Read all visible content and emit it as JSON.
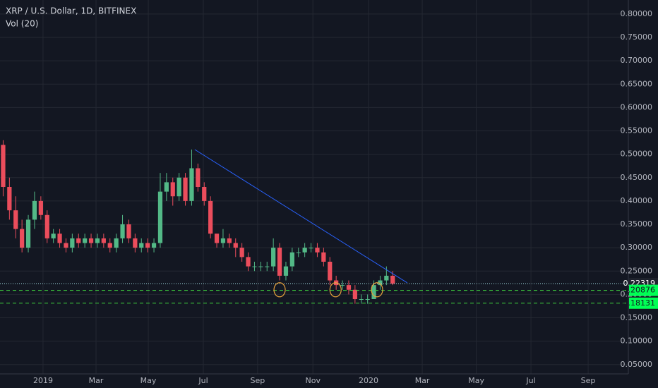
{
  "chart_data": {
    "type": "candlestick",
    "title": "XRP / U.S. Dollar, 1D, BITFINEX",
    "subtitle": "Vol (20)",
    "up_color": "#53b987",
    "down_color": "#eb4d5c",
    "grid": true,
    "open": [
      0.52,
      0.43,
      0.38,
      0.34,
      0.3,
      0.36,
      0.4,
      0.37,
      0.32,
      0.33,
      0.31,
      0.3,
      0.32,
      0.31,
      0.32,
      0.31,
      0.32,
      0.31,
      0.3,
      0.32,
      0.35,
      0.32,
      0.3,
      0.31,
      0.3,
      0.31,
      0.42,
      0.44,
      0.41,
      0.45,
      0.4,
      0.47,
      0.43,
      0.4,
      0.33,
      0.31,
      0.32,
      0.31,
      0.3,
      0.28,
      0.26,
      0.26,
      0.26,
      0.26,
      0.3,
      0.24,
      0.26,
      0.29,
      0.29,
      0.3,
      0.3,
      0.29,
      0.27,
      0.23,
      0.22,
      0.22,
      0.21,
      0.19,
      0.19,
      0.19,
      0.22,
      0.23,
      0.24
    ],
    "high": [
      0.53,
      0.45,
      0.41,
      0.36,
      0.37,
      0.42,
      0.41,
      0.38,
      0.34,
      0.34,
      0.32,
      0.33,
      0.33,
      0.33,
      0.33,
      0.33,
      0.33,
      0.32,
      0.33,
      0.37,
      0.36,
      0.33,
      0.32,
      0.32,
      0.32,
      0.46,
      0.46,
      0.45,
      0.46,
      0.46,
      0.51,
      0.48,
      0.44,
      0.41,
      0.33,
      0.34,
      0.33,
      0.32,
      0.31,
      0.29,
      0.27,
      0.27,
      0.27,
      0.32,
      0.31,
      0.27,
      0.3,
      0.3,
      0.31,
      0.31,
      0.31,
      0.3,
      0.28,
      0.24,
      0.23,
      0.23,
      0.22,
      0.2,
      0.2,
      0.23,
      0.24,
      0.26,
      0.25
    ],
    "low": [
      0.41,
      0.36,
      0.32,
      0.29,
      0.29,
      0.34,
      0.36,
      0.31,
      0.31,
      0.3,
      0.29,
      0.29,
      0.3,
      0.3,
      0.3,
      0.3,
      0.3,
      0.29,
      0.29,
      0.31,
      0.31,
      0.29,
      0.29,
      0.29,
      0.29,
      0.3,
      0.4,
      0.39,
      0.4,
      0.39,
      0.39,
      0.42,
      0.39,
      0.32,
      0.3,
      0.3,
      0.3,
      0.28,
      0.27,
      0.25,
      0.25,
      0.25,
      0.25,
      0.25,
      0.23,
      0.23,
      0.25,
      0.28,
      0.28,
      0.29,
      0.28,
      0.26,
      0.22,
      0.21,
      0.21,
      0.2,
      0.18,
      0.18,
      0.18,
      0.19,
      0.21,
      0.22,
      0.22
    ],
    "close": [
      0.43,
      0.38,
      0.34,
      0.3,
      0.36,
      0.4,
      0.37,
      0.32,
      0.33,
      0.31,
      0.3,
      0.32,
      0.31,
      0.32,
      0.31,
      0.32,
      0.31,
      0.3,
      0.32,
      0.35,
      0.32,
      0.3,
      0.31,
      0.3,
      0.31,
      0.42,
      0.44,
      0.41,
      0.45,
      0.4,
      0.47,
      0.43,
      0.4,
      0.33,
      0.31,
      0.32,
      0.31,
      0.3,
      0.28,
      0.26,
      0.26,
      0.26,
      0.26,
      0.3,
      0.24,
      0.26,
      0.29,
      0.29,
      0.3,
      0.3,
      0.29,
      0.27,
      0.23,
      0.22,
      0.22,
      0.21,
      0.19,
      0.19,
      0.19,
      0.22,
      0.23,
      0.24,
      0.22319
    ],
    "xlim": [
      -0.5,
      99.5
    ],
    "xticks": [
      {
        "value": 6.35,
        "label": "2019"
      },
      {
        "value": 14.78,
        "label": "Mar"
      },
      {
        "value": 23.1,
        "label": "May"
      },
      {
        "value": 31.86,
        "label": "Jul"
      },
      {
        "value": 40.5,
        "label": "Sep"
      },
      {
        "value": 49.3,
        "label": "Nov"
      },
      {
        "value": 58.15,
        "label": "2020"
      },
      {
        "value": 66.7,
        "label": "Mar"
      },
      {
        "value": 75.3,
        "label": "May"
      },
      {
        "value": 84,
        "label": "Jul"
      },
      {
        "value": 93.1,
        "label": "Sep"
      }
    ],
    "ylim": [
      0.03,
      0.83
    ],
    "yticks": [
      {
        "value": 0.05,
        "label": "0.05000"
      },
      {
        "value": 0.1,
        "label": "0.10000"
      },
      {
        "value": 0.15,
        "label": "0.15000"
      },
      {
        "value": 0.2,
        "label": "0.20000"
      },
      {
        "value": 0.25,
        "label": "0.25000"
      },
      {
        "value": 0.3,
        "label": "0.30000"
      },
      {
        "value": 0.35,
        "label": "0.35000"
      },
      {
        "value": 0.4,
        "label": "0.40000"
      },
      {
        "value": 0.45,
        "label": "0.45000"
      },
      {
        "value": 0.5,
        "label": "0.50000"
      },
      {
        "value": 0.55,
        "label": "0.55000"
      },
      {
        "value": 0.6,
        "label": "0.60000"
      },
      {
        "value": 0.65,
        "label": "0.65000"
      },
      {
        "value": 0.7,
        "label": "0.70000"
      },
      {
        "value": 0.75,
        "label": "0.75000"
      },
      {
        "value": 0.8,
        "label": "0.80000"
      }
    ],
    "levels": [
      {
        "value": 0.22319,
        "color": "#9fd8e0",
        "dash": "dotted",
        "label_bg": "#1e222d"
      },
      {
        "value": 0.20876,
        "color": "#3ed63e",
        "dash": "dashed",
        "label_bg": "#00ff55"
      },
      {
        "value": 0.18131,
        "color": "#3ed63e",
        "dash": "dashed",
        "label_bg": "#00ff55"
      }
    ],
    "trendline": {
      "x": [
        30.5,
        64.3
      ],
      "y": [
        0.51,
        0.225
      ],
      "color": "#2962ff"
    },
    "circles": {
      "x": [
        44,
        52.9,
        59.5
      ],
      "y": [
        0.21,
        0.21,
        0.21
      ],
      "color": "#e8a33c"
    }
  }
}
